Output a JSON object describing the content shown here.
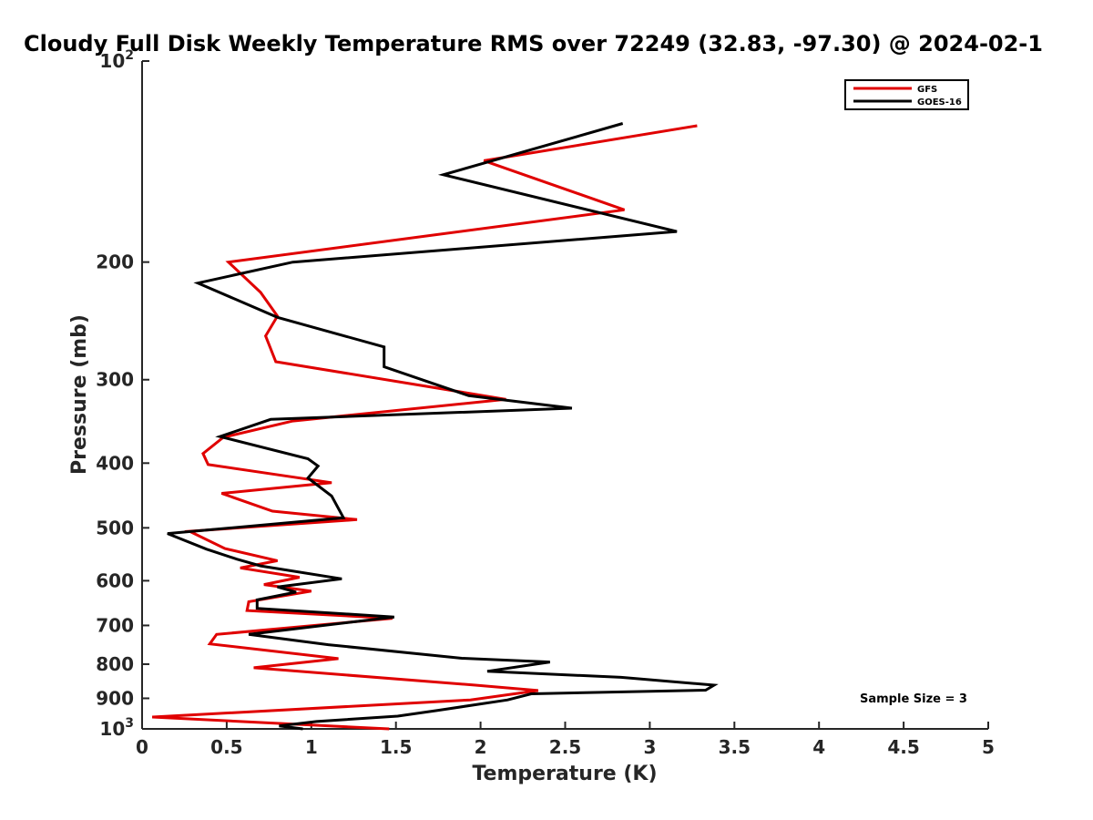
{
  "chart_data": {
    "type": "line",
    "title": "Cloudy Full Disk Weekly Temperature RMS over 72249 (32.83, -97.30) @ 2024-02-1",
    "xlabel": "Temperature (K)",
    "ylabel": "Pressure (mb)",
    "xlim": [
      0,
      5
    ],
    "ylim": [
      100,
      1000
    ],
    "y_scale": "log",
    "y_reversed": true,
    "grid": false,
    "legend_position": "top-right",
    "x_ticks": [
      {
        "value": 0,
        "label": "0"
      },
      {
        "value": 0.5,
        "label": "0.5"
      },
      {
        "value": 1,
        "label": "1"
      },
      {
        "value": 1.5,
        "label": "1.5"
      },
      {
        "value": 2,
        "label": "2"
      },
      {
        "value": 2.5,
        "label": "2.5"
      },
      {
        "value": 3,
        "label": "3"
      },
      {
        "value": 3.5,
        "label": "3.5"
      },
      {
        "value": 4,
        "label": "4"
      },
      {
        "value": 4.5,
        "label": "4.5"
      },
      {
        "value": 5,
        "label": "5"
      }
    ],
    "y_ticks": [
      {
        "value": 100,
        "label": "10",
        "sup": "2"
      },
      {
        "value": 200,
        "label": "200"
      },
      {
        "value": 300,
        "label": "300"
      },
      {
        "value": 400,
        "label": "400"
      },
      {
        "value": 500,
        "label": "500"
      },
      {
        "value": 600,
        "label": "600"
      },
      {
        "value": 700,
        "label": "700"
      },
      {
        "value": 800,
        "label": "800"
      },
      {
        "value": 900,
        "label": "900"
      },
      {
        "value": 1000,
        "label": "10",
        "sup": "3"
      }
    ],
    "annotation": "Sample Size = 3",
    "series": [
      {
        "name": "GFS",
        "color": "#e00000",
        "points": [
          [
            3.28,
            125
          ],
          [
            2.02,
            141
          ],
          [
            2.85,
            167
          ],
          [
            0.51,
            200
          ],
          [
            0.7,
            222
          ],
          [
            0.8,
            241
          ],
          [
            0.73,
            258
          ],
          [
            0.79,
            282
          ],
          [
            2.15,
            321
          ],
          [
            0.89,
            346
          ],
          [
            0.48,
            366
          ],
          [
            0.36,
            387
          ],
          [
            0.39,
            402
          ],
          [
            1.12,
            428
          ],
          [
            0.47,
            444
          ],
          [
            0.77,
            472
          ],
          [
            1.27,
            486
          ],
          [
            0.28,
            506
          ],
          [
            0.49,
            537
          ],
          [
            0.8,
            560
          ],
          [
            0.58,
            574
          ],
          [
            0.93,
            593
          ],
          [
            0.72,
            608
          ],
          [
            1.0,
            622
          ],
          [
            0.63,
            645
          ],
          [
            0.62,
            665
          ],
          [
            1.48,
            683
          ],
          [
            0.44,
            722
          ],
          [
            0.4,
            746
          ],
          [
            1.16,
            785
          ],
          [
            0.66,
            810
          ],
          [
            1.97,
            860
          ],
          [
            2.34,
            876
          ],
          [
            1.94,
            905
          ],
          [
            0.06,
            960
          ],
          [
            0.69,
            978
          ],
          [
            1.46,
            1000
          ]
        ]
      },
      {
        "name": "GOES-16",
        "color": "#000000",
        "points": [
          [
            2.84,
            124
          ],
          [
            1.78,
            148
          ],
          [
            3.16,
            180
          ],
          [
            0.89,
            200
          ],
          [
            0.33,
            215
          ],
          [
            0.8,
            242
          ],
          [
            1.43,
            268
          ],
          [
            1.43,
            287
          ],
          [
            1.93,
            317
          ],
          [
            2.54,
            331
          ],
          [
            0.76,
            344
          ],
          [
            0.46,
            365
          ],
          [
            0.98,
            394
          ],
          [
            1.04,
            404
          ],
          [
            0.98,
            421
          ],
          [
            1.12,
            448
          ],
          [
            1.19,
            483
          ],
          [
            0.15,
            510
          ],
          [
            0.38,
            538
          ],
          [
            0.56,
            557
          ],
          [
            0.7,
            570
          ],
          [
            1.18,
            596
          ],
          [
            0.8,
            613
          ],
          [
            0.91,
            624
          ],
          [
            0.68,
            641
          ],
          [
            0.68,
            660
          ],
          [
            1.49,
            680
          ],
          [
            0.63,
            722
          ],
          [
            1.1,
            748
          ],
          [
            1.89,
            784
          ],
          [
            2.41,
            794
          ],
          [
            2.04,
            820
          ],
          [
            2.83,
            837
          ],
          [
            3.38,
            860
          ],
          [
            3.33,
            875
          ],
          [
            2.3,
            886
          ],
          [
            2.16,
            905
          ],
          [
            1.75,
            938
          ],
          [
            1.51,
            957
          ],
          [
            1.03,
            975
          ],
          [
            0.81,
            990
          ],
          [
            0.95,
            1000
          ]
        ]
      }
    ]
  }
}
